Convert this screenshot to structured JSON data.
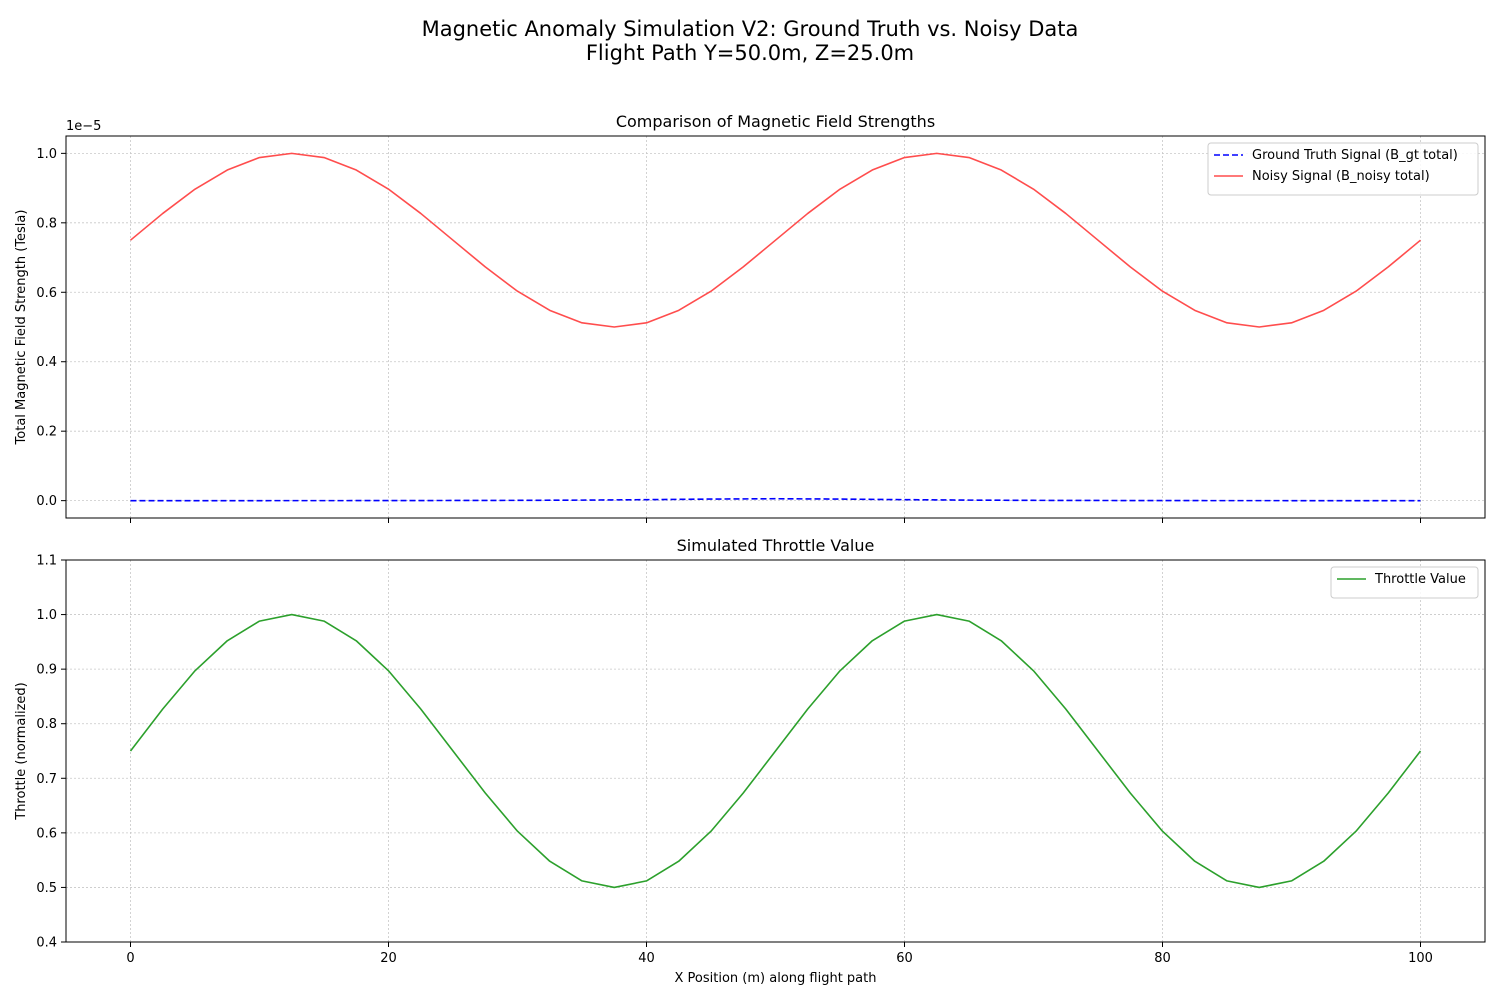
{
  "figure": {
    "title_line1": "Magnetic Anomaly Simulation V2: Ground Truth vs. Noisy Data",
    "title_line2": "Flight Path Y=50.0m, Z=25.0m"
  },
  "chart_data": [
    {
      "type": "line",
      "title": "Comparison of Magnetic Field Strengths",
      "xlabel": "",
      "ylabel": "Total Magnetic Field Strength (Tesla)",
      "y_offset_label": "1e−5",
      "y_scale_factor": 1e-05,
      "xlim": [
        -5,
        105
      ],
      "ylim": [
        -5e-07,
        1.05e-05
      ],
      "x_ticks": [
        0,
        20,
        40,
        60,
        80,
        100
      ],
      "y_ticks": [
        0.0,
        0.2,
        0.4,
        0.6,
        0.8,
        1.0
      ],
      "grid": true,
      "legend_position": "top-right",
      "series": [
        {
          "name": "Ground Truth Signal (B_gt total)",
          "color": "#0000ff",
          "style": "dashed",
          "x": [
            0,
            10,
            20,
            30,
            35,
            40,
            45,
            50,
            55,
            60,
            65,
            70,
            80,
            90,
            100
          ],
          "y": [
            0,
            0,
            1e-09,
            8e-09,
            1.5e-08,
            2.8e-08,
            4.5e-08,
            5.5e-08,
            4.5e-08,
            2.8e-08,
            1.5e-08,
            8e-09,
            1e-09,
            0,
            0
          ]
        },
        {
          "name": "Noisy Signal (B_noisy total)",
          "color": "#ff4d4d",
          "style": "solid",
          "x": [
            0,
            2.5,
            5,
            7.5,
            10,
            12.5,
            15,
            17.5,
            20,
            22.5,
            25,
            27.5,
            30,
            32.5,
            35,
            37.5,
            40,
            42.5,
            45,
            47.5,
            50,
            52.5,
            55,
            57.5,
            60,
            62.5,
            65,
            67.5,
            70,
            72.5,
            75,
            77.5,
            80,
            82.5,
            85,
            87.5,
            90,
            92.5,
            95,
            97.5,
            100
          ],
          "y": [
            7.5e-06,
            8.27e-06,
            8.97e-06,
            9.52e-06,
            9.88e-06,
            1e-05,
            9.88e-06,
            9.52e-06,
            8.97e-06,
            8.27e-06,
            7.5e-06,
            6.73e-06,
            6.03e-06,
            5.48e-06,
            5.12e-06,
            5e-06,
            5.12e-06,
            5.48e-06,
            6.03e-06,
            6.73e-06,
            7.5e-06,
            8.27e-06,
            8.97e-06,
            9.52e-06,
            9.88e-06,
            1e-05,
            9.88e-06,
            9.52e-06,
            8.97e-06,
            8.27e-06,
            7.5e-06,
            6.73e-06,
            6.03e-06,
            5.48e-06,
            5.12e-06,
            5e-06,
            5.12e-06,
            5.48e-06,
            6.03e-06,
            6.73e-06,
            7.5e-06
          ]
        }
      ]
    },
    {
      "type": "line",
      "title": "Simulated Throttle Value",
      "xlabel": "X Position (m) along flight path",
      "ylabel": "Throttle (normalized)",
      "xlim": [
        -5,
        105
      ],
      "ylim": [
        0.4,
        1.1
      ],
      "x_ticks": [
        0,
        20,
        40,
        60,
        80,
        100
      ],
      "y_ticks": [
        0.4,
        0.5,
        0.6,
        0.7,
        0.8,
        0.9,
        1.0,
        1.1
      ],
      "grid": true,
      "legend_position": "top-right",
      "series": [
        {
          "name": "Throttle Value",
          "color": "#2ca02c",
          "style": "solid",
          "x": [
            0,
            2.5,
            5,
            7.5,
            10,
            12.5,
            15,
            17.5,
            20,
            22.5,
            25,
            27.5,
            30,
            32.5,
            35,
            37.5,
            40,
            42.5,
            45,
            47.5,
            50,
            52.5,
            55,
            57.5,
            60,
            62.5,
            65,
            67.5,
            70,
            72.5,
            75,
            77.5,
            80,
            82.5,
            85,
            87.5,
            90,
            92.5,
            95,
            97.5,
            100
          ],
          "y": [
            0.75,
            0.827,
            0.897,
            0.952,
            0.988,
            1.0,
            0.988,
            0.952,
            0.897,
            0.827,
            0.75,
            0.673,
            0.603,
            0.548,
            0.512,
            0.5,
            0.512,
            0.548,
            0.603,
            0.673,
            0.75,
            0.827,
            0.897,
            0.952,
            0.988,
            1.0,
            0.988,
            0.952,
            0.897,
            0.827,
            0.75,
            0.673,
            0.603,
            0.548,
            0.512,
            0.5,
            0.512,
            0.548,
            0.603,
            0.673,
            0.75
          ]
        }
      ]
    }
  ]
}
